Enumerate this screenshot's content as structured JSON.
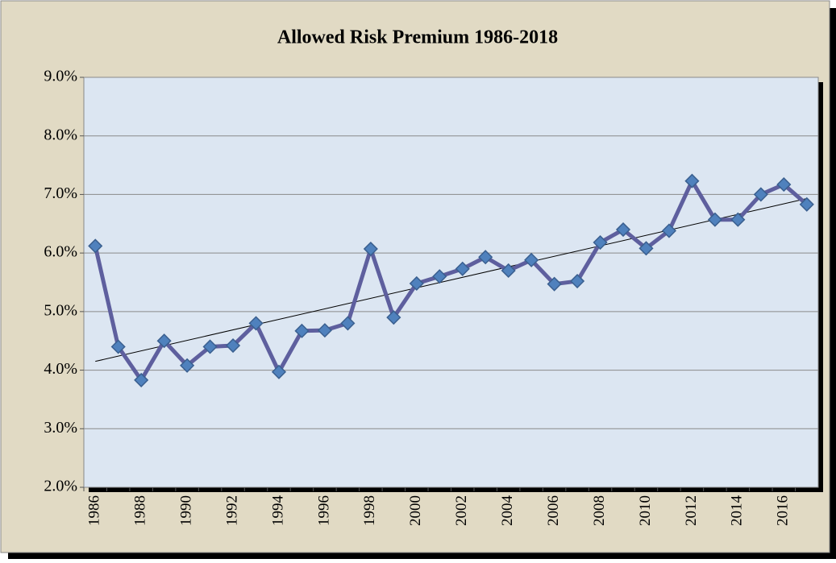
{
  "chart_data": {
    "type": "line",
    "title": "Allowed Risk Premium 1986-2018",
    "categories": [
      "1986",
      null,
      "1988",
      null,
      "1990",
      null,
      "1992",
      null,
      "1994",
      null,
      "1996",
      null,
      "1998",
      null,
      "2000",
      null,
      "2002",
      null,
      "2004",
      null,
      "2006",
      null,
      "2008",
      null,
      "2010",
      null,
      "2012",
      null,
      "2014",
      null,
      "2016",
      null
    ],
    "series": [
      {
        "color": "#5e5f9e",
        "marker_color": "#4f81bd",
        "values": [
          6.12,
          4.4,
          3.83,
          4.5,
          4.08,
          4.4,
          4.42,
          4.8,
          3.97,
          4.67,
          4.68,
          4.8,
          6.07,
          4.9,
          5.48,
          5.6,
          5.73,
          5.93,
          5.7,
          5.88,
          5.47,
          5.52,
          6.18,
          6.4,
          6.08,
          6.38,
          7.23,
          6.57,
          6.57,
          7.0,
          7.17,
          6.83
        ]
      }
    ],
    "trendline": [
      4.15,
      6.93
    ],
    "ylim": [
      2,
      9
    ],
    "yticks": [
      {
        "value": 2,
        "label": "2.0%"
      },
      {
        "value": 3,
        "label": "3.0%"
      },
      {
        "value": 4,
        "label": "4.0%"
      },
      {
        "value": 5,
        "label": "5.0%"
      },
      {
        "value": 6,
        "label": "6.0%"
      },
      {
        "value": 7,
        "label": "7.0%"
      },
      {
        "value": 8,
        "label": "8.0%"
      },
      {
        "value": 9,
        "label": "9.0%"
      }
    ],
    "grid": true
  }
}
